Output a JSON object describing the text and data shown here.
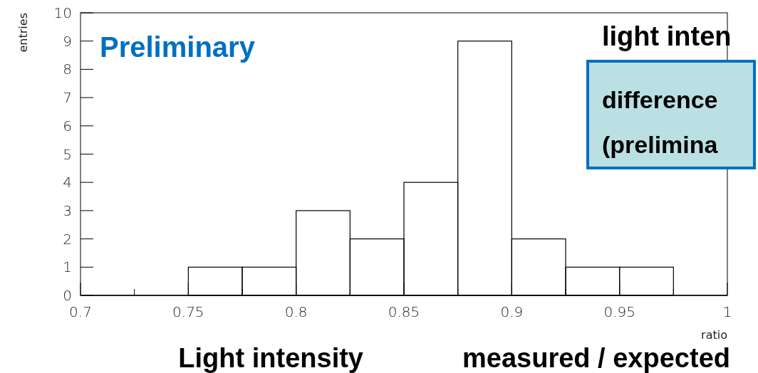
{
  "chart_data": {
    "type": "histogram",
    "xlabel": "ratio",
    "ylabel": "entries",
    "bins": [
      0.7,
      0.725,
      0.75,
      0.775,
      0.8,
      0.825,
      0.85,
      0.875,
      0.9,
      0.925,
      0.95,
      0.975,
      1.0
    ],
    "values": [
      0,
      0,
      1,
      1,
      3,
      2,
      4,
      9,
      2,
      1,
      1,
      0
    ],
    "color": "#000000",
    "xlim": [
      0.7,
      1.0
    ],
    "xticks": [
      0.7,
      {
        "value": 0.725,
        "label": null
      },
      0.75,
      {
        "value": 0.775,
        "label": null
      },
      0.8,
      {
        "value": 0.825,
        "label": null
      },
      0.85,
      {
        "value": 0.875,
        "label": null
      },
      0.9,
      {
        "value": 0.925,
        "label": null
      },
      0.95,
      {
        "value": 0.975,
        "label": null
      },
      1
    ],
    "ylim": [
      0,
      10
    ],
    "yticks": [
      0,
      1,
      2,
      3,
      4,
      5,
      6,
      7,
      8,
      9,
      10
    ],
    "grid": false,
    "annotations": [
      "Preliminary",
      "light inten",
      "difference",
      "(prelimina",
      "Light intensity",
      "measured / expected"
    ]
  }
}
